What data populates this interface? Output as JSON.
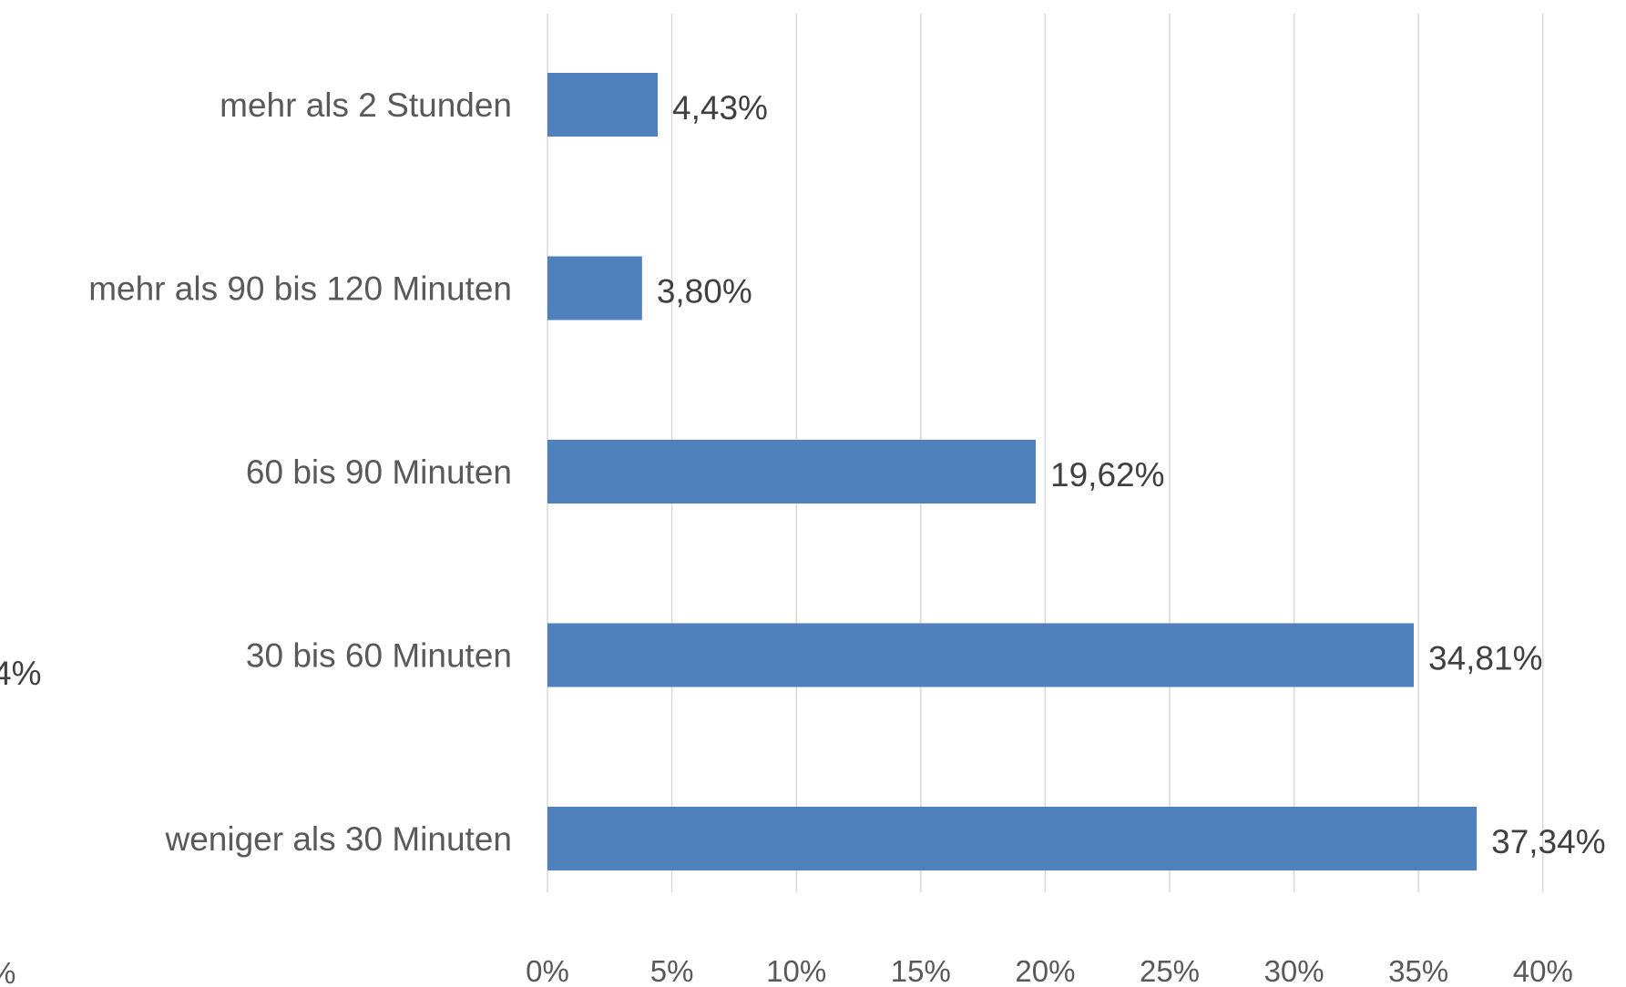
{
  "chart_data": {
    "type": "bar",
    "orientation": "horizontal",
    "categories": [
      "mehr als 2 Stunden",
      "mehr als 90 bis 120 Minuten",
      "60 bis 90 Minuten",
      "30 bis 60 Minuten",
      "weniger als 30 Minuten"
    ],
    "values": [
      4.43,
      3.8,
      19.62,
      34.81,
      37.34
    ],
    "value_labels": [
      "4,43%",
      "3,80%",
      "19,62%",
      "34,81%",
      "37,34%"
    ],
    "xlim": [
      0,
      40
    ],
    "x_ticks": [
      0,
      5,
      10,
      15,
      20,
      25,
      30,
      35,
      40
    ],
    "x_tick_labels": [
      "0%",
      "5%",
      "10%",
      "15%",
      "20%",
      "25%",
      "30%",
      "35%",
      "40%"
    ],
    "grid": true,
    "bar_color": "#4f81bd",
    "title": "",
    "xlabel": "",
    "ylabel": ""
  },
  "clipped_fragments": {
    "left_label": "4%",
    "bottom_left_label": "%"
  }
}
